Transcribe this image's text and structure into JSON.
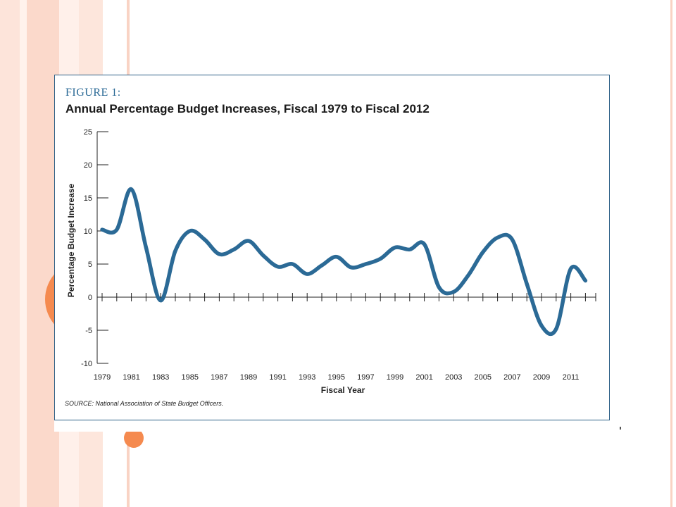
{
  "figure_label": "FIGURE 1:",
  "chart_data": {
    "type": "line",
    "title": "Annual Percentage Budget Increases, Fiscal 1979 to Fiscal 2012",
    "xlabel": "Fiscal Year",
    "ylabel": "Percentage Budget Increase",
    "ylim": [
      -10,
      25
    ],
    "yticks": [
      25,
      20,
      15,
      10,
      5,
      0,
      -5,
      -10
    ],
    "xlim": [
      1979,
      2012
    ],
    "xtick_labels": [
      "1979",
      "1981",
      "1983",
      "1985",
      "1987",
      "1989",
      "1991",
      "1993",
      "1995",
      "1997",
      "1999",
      "2001",
      "2003",
      "2005",
      "2007",
      "2009",
      "2011"
    ],
    "series": [
      {
        "color": "#2b6a96",
        "x": [
          1979,
          1980,
          1981,
          1982,
          1983,
          1984,
          1985,
          1986,
          1987,
          1988,
          1989,
          1990,
          1991,
          1992,
          1993,
          1994,
          1995,
          1996,
          1997,
          1998,
          1999,
          2000,
          2001,
          2002,
          2003,
          2004,
          2005,
          2006,
          2007,
          2008,
          2009,
          2010,
          2011,
          2012
        ],
        "values": [
          10.2,
          10.2,
          16.3,
          7.5,
          -0.5,
          7.0,
          10.0,
          8.7,
          6.5,
          7.2,
          8.5,
          6.3,
          4.6,
          5.0,
          3.5,
          4.8,
          6.1,
          4.5,
          5.0,
          5.8,
          7.5,
          7.2,
          8.0,
          1.5,
          0.8,
          3.3,
          6.8,
          9.0,
          8.7,
          2.0,
          -4.3,
          -4.8,
          4.3,
          2.5
        ]
      }
    ],
    "grid": false
  },
  "source_note": "SOURCE: National Association of State Budget Officers.",
  "colors": {
    "line": "#2b6a96",
    "frame": "#2c5f86",
    "accent": "#f58a4f"
  }
}
